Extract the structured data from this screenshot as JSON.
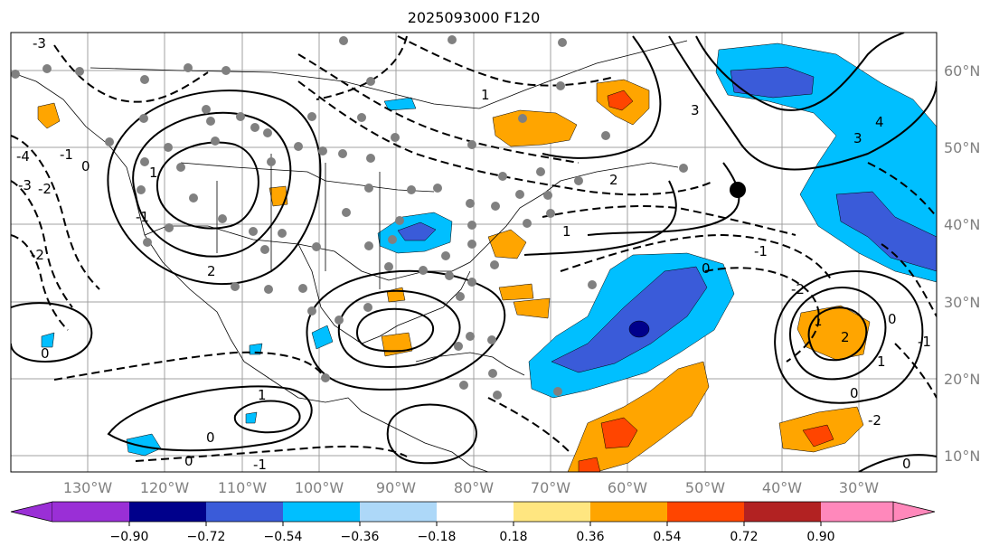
{
  "title": "2025093000 F120",
  "map": {
    "longitude_labels": [
      "130°W",
      "120°W",
      "110°W",
      "100°W",
      "90°W",
      "80°W",
      "70°W",
      "60°W",
      "50°W",
      "40°W",
      "30°W"
    ],
    "latitude_labels": [
      "10°N",
      "20°N",
      "30°N",
      "40°N",
      "50°N",
      "60°N"
    ],
    "contour_labels": [
      "-3",
      "-4",
      "-3",
      "-2",
      "-2",
      "-1",
      "0",
      "0",
      "-1",
      "1",
      "2",
      "1",
      "0",
      "0",
      "-1",
      "1",
      "3",
      "4",
      "3",
      "0",
      "-1",
      "0",
      "1",
      "1",
      "0",
      "2",
      "-1",
      "-2",
      "2",
      "1",
      "-2",
      "0"
    ]
  },
  "colorbar": {
    "tick_labels": [
      "−0.90",
      "−0.72",
      "−0.54",
      "−0.36",
      "−0.18",
      "0.18",
      "0.36",
      "0.54",
      "0.72",
      "0.90"
    ],
    "colors": [
      "#9a2fd6",
      "#00008b",
      "#3a5bd9",
      "#00bfff",
      "#add8f8",
      "#ffffff",
      "#ffe680",
      "#ffa500",
      "#ff4500",
      "#b22222",
      "#ff88bb"
    ]
  }
}
